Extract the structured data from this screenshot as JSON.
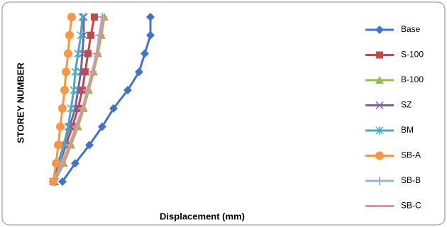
{
  "chart_data": {
    "type": "line",
    "orientation": "horizontal",
    "x_axis_label": "Displacement (mm)",
    "y_axis_label": "STOREY NUMBER",
    "categories": [
      null,
      null,
      null,
      null,
      null,
      null,
      null,
      null,
      null,
      null
    ],
    "xlim": [
      0,
      100
    ],
    "series": [
      {
        "name": "Base",
        "color": "#4472c4",
        "marker": "diamond",
        "values": [
          5,
          9.5,
          14.5,
          19,
          23,
          28,
          32,
          34,
          36,
          36
        ]
      },
      {
        "name": "S-100",
        "color": "#be4b48",
        "marker": "square",
        "values": [
          2,
          4,
          6.25,
          8.5,
          10.5,
          12,
          13,
          14,
          15,
          16.25
        ]
      },
      {
        "name": "B-100",
        "color": "#98b954",
        "marker": "triangle",
        "values": [
          2.25,
          5.5,
          8,
          10.5,
          12.5,
          14.25,
          16,
          17.5,
          18.75,
          19.75
        ]
      },
      {
        "name": "SZ",
        "color": "#7d60a0",
        "marker": "x",
        "values": [
          1.75,
          3.5,
          5.5,
          7.5,
          9.5,
          10.5,
          11.5,
          12,
          12.5,
          12.5
        ]
      },
      {
        "name": "BM",
        "color": "#46aac5",
        "marker": "star",
        "values": [
          2.5,
          4,
          5.5,
          7,
          8,
          9,
          9.5,
          10.5,
          11.5,
          12
        ]
      },
      {
        "name": "SB-A",
        "color": "#f79646",
        "marker": "circle",
        "values": [
          1.75,
          2.75,
          3.5,
          4.25,
          5,
          5.75,
          6.25,
          7,
          7.5,
          8.25
        ]
      },
      {
        "name": "SB-B",
        "color": "#95b3d7",
        "marker": "plus",
        "values": [
          1.75,
          4.75,
          7.5,
          9.75,
          12,
          13.75,
          15.5,
          17,
          18,
          19
        ]
      },
      {
        "name": "SB-C",
        "color": "#d99694",
        "marker": "dash",
        "values": [
          2,
          5,
          7.75,
          10,
          12.25,
          14,
          15.75,
          17.25,
          18.5,
          19.5
        ]
      }
    ]
  }
}
